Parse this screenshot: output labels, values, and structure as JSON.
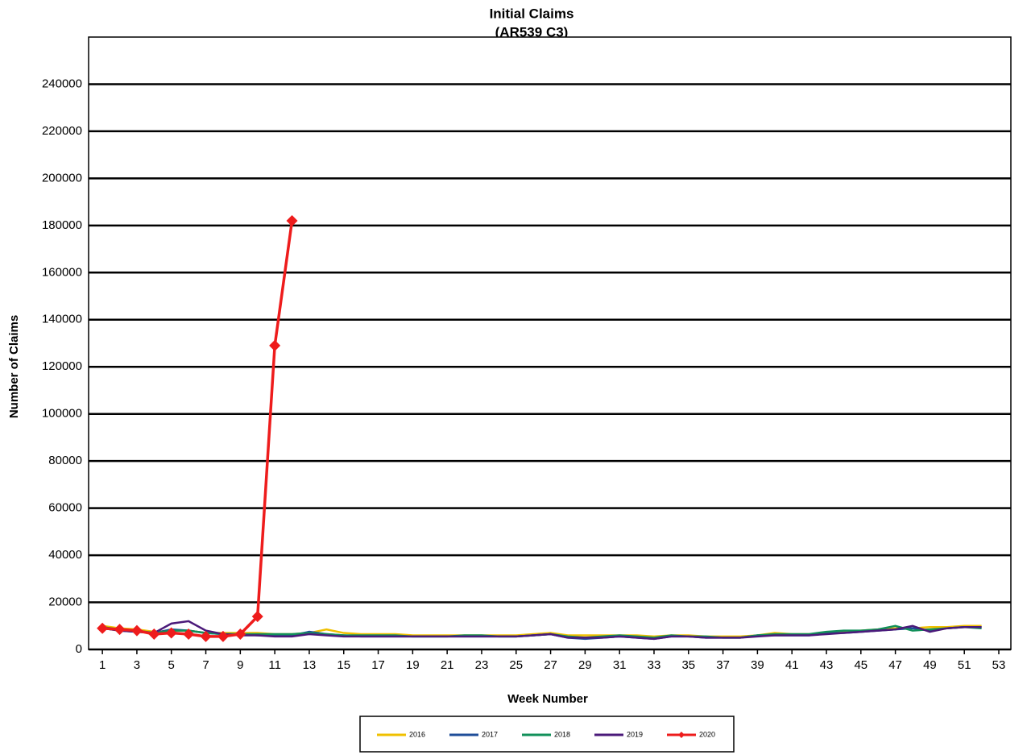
{
  "chart_data": {
    "type": "line",
    "title": "Initial Claims",
    "subtitle": "(AR539 C3)",
    "x_label": "Week Number",
    "y_label": "Number of Claims",
    "x": [
      1,
      2,
      3,
      4,
      5,
      6,
      7,
      8,
      9,
      10,
      11,
      12,
      13,
      14,
      15,
      16,
      17,
      18,
      19,
      20,
      21,
      22,
      23,
      24,
      25,
      26,
      27,
      28,
      29,
      30,
      31,
      32,
      33,
      34,
      35,
      36,
      37,
      38,
      39,
      40,
      41,
      42,
      43,
      44,
      45,
      46,
      47,
      48,
      49,
      50,
      51,
      52
    ],
    "series": [
      {
        "name": "2016",
        "color": "#f0c000",
        "values": [
          10000,
          9000,
          8500,
          7500,
          8000,
          8000,
          7000,
          7000,
          7000,
          7000,
          6500,
          6500,
          7000,
          8500,
          7000,
          6500,
          6500,
          6500,
          6000,
          6000,
          6000,
          6000,
          6000,
          6000,
          6000,
          6500,
          7000,
          6000,
          6000,
          6000,
          6000,
          6000,
          5500,
          6000,
          6000,
          5500,
          5500,
          5500,
          6000,
          7000,
          6500,
          6500,
          7000,
          7500,
          8000,
          8500,
          9000,
          9000,
          9500,
          9500,
          10000,
          10000
        ]
      },
      {
        "name": "2017",
        "color": "#1f4e99",
        "values": [
          9000,
          8000,
          7500,
          7000,
          8500,
          8000,
          7000,
          6500,
          6500,
          6000,
          6000,
          6000,
          7500,
          6500,
          6000,
          5500,
          5500,
          5500,
          5500,
          5500,
          5500,
          5500,
          5500,
          5500,
          5500,
          6000,
          6500,
          5000,
          4500,
          5000,
          5500,
          5000,
          4500,
          5500,
          5500,
          5000,
          5000,
          5000,
          6000,
          6000,
          6000,
          6000,
          7000,
          7000,
          7500,
          8000,
          8500,
          9000,
          8000,
          9000,
          9500,
          9500
        ]
      },
      {
        "name": "2018",
        "color": "#12905a",
        "values": [
          9500,
          8500,
          8000,
          7000,
          8000,
          8000,
          7000,
          6500,
          6500,
          6500,
          6500,
          6500,
          7000,
          6500,
          6000,
          6000,
          6000,
          6000,
          5500,
          5500,
          5500,
          6000,
          6000,
          5500,
          5500,
          6000,
          6500,
          5500,
          5000,
          5500,
          6000,
          5500,
          5000,
          6000,
          5500,
          5500,
          5000,
          5000,
          6000,
          6500,
          6500,
          6500,
          7500,
          8000,
          8000,
          8500,
          10000,
          8000,
          8500,
          9000,
          9500,
          9000
        ]
      },
      {
        "name": "2019",
        "color": "#4b1a7a",
        "values": [
          9000,
          8000,
          7500,
          7000,
          11000,
          12000,
          8000,
          6500,
          6000,
          6000,
          5500,
          5500,
          6500,
          6000,
          5500,
          5500,
          5500,
          5500,
          5500,
          5500,
          5500,
          5500,
          5500,
          5500,
          5500,
          6000,
          6500,
          5000,
          5000,
          5000,
          5500,
          5000,
          4500,
          5500,
          5500,
          5000,
          5000,
          5000,
          5500,
          6000,
          6000,
          6000,
          6500,
          7000,
          7500,
          8000,
          8500,
          10000,
          7500,
          9000,
          9500,
          9500
        ]
      },
      {
        "name": "2020",
        "color": "#ee1c1c",
        "marker": "diamond",
        "values": [
          9000,
          8500,
          8000,
          6500,
          7000,
          6500,
          5500,
          5500,
          6500,
          14000,
          129000,
          182000,
          null,
          null,
          null,
          null,
          null,
          null,
          null,
          null,
          null,
          null,
          null,
          null,
          null,
          null,
          null,
          null,
          null,
          null,
          null,
          null,
          null,
          null,
          null,
          null,
          null,
          null,
          null,
          null,
          null,
          null,
          null,
          null,
          null,
          null,
          null,
          null,
          null,
          null,
          null,
          null
        ]
      }
    ],
    "xlim": [
      0.2,
      53.7
    ],
    "xticks": [
      1,
      3,
      5,
      7,
      9,
      11,
      13,
      15,
      17,
      19,
      21,
      23,
      25,
      27,
      29,
      31,
      33,
      35,
      37,
      39,
      41,
      43,
      45,
      47,
      49,
      51,
      53
    ],
    "ylim": [
      0,
      260000
    ],
    "yticks": [
      0,
      20000,
      40000,
      60000,
      80000,
      100000,
      120000,
      140000,
      160000,
      180000,
      200000,
      220000,
      240000
    ],
    "grid": true
  }
}
